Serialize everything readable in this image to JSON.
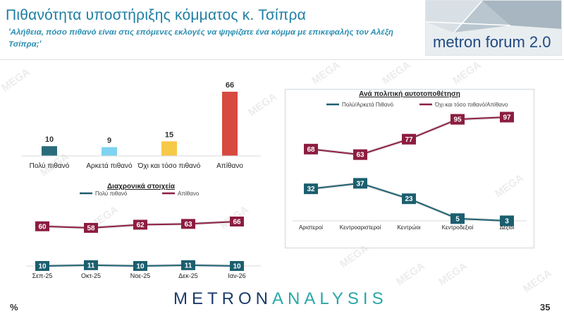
{
  "header": {
    "title": "Πιθανότητα υποστήριξης κόμματος κ. Τσίπρα",
    "subtitle": "'Αλήθεια, πόσο πιθανό είναι στις επόμενες εκλογές να ψηφίζατε ένα κόμμα με επικεφαλής τον Αλέξη Τσίπρα;'",
    "logo": "metron forum 2.0"
  },
  "watermark_text": "MEGA",
  "footer": {
    "percent_sign": "%",
    "page_number": "35",
    "brand_part1": "METRON",
    "brand_part2": "ANALYSIS"
  },
  "colors": {
    "teal": "#2a6b7c",
    "lightblue": "#7dd3f0",
    "yellow": "#f7c948",
    "red": "#d64a3f",
    "maroon": "#8c1d40",
    "dark_teal": "#1b5f6f"
  },
  "chart_data": [
    {
      "type": "bar",
      "categories": [
        "Πολύ πιθανό",
        "Αρκετά πιθανό",
        "Όχι και τόσο πιθανό",
        "Απίθανο"
      ],
      "values": [
        10,
        9,
        15,
        66
      ],
      "bar_colors": [
        "#2a6b7c",
        "#7dd3f0",
        "#f7c948",
        "#d64a3f"
      ],
      "ylim": [
        0,
        70
      ]
    },
    {
      "type": "line",
      "title": "Διαχρονικά στοιχεία",
      "categories": [
        "Σεπ-25",
        "Οκτ-25",
        "Νοε-25",
        "Δεκ-25",
        "Ιαν-26"
      ],
      "series": [
        {
          "name": "Πολύ πιθανό",
          "values": [
            10,
            11,
            10,
            11,
            10
          ],
          "color": "#1b5f6f"
        },
        {
          "name": "Απίθανο",
          "values": [
            60,
            58,
            62,
            63,
            66
          ],
          "color": "#8c1d40"
        }
      ],
      "legend": "top",
      "ylim": [
        0,
        75
      ]
    },
    {
      "type": "line",
      "title": "Ανά πολιτική αυτοτοποθέτηση",
      "categories": [
        "Αριστεροί",
        "Κεντροαριστεροί",
        "Κεντρώοι",
        "Κεντροδεξιοί",
        "Δεξιοί"
      ],
      "series": [
        {
          "name": "Πολύ/Αρκετά Πιθανό",
          "values": [
            32,
            37,
            23,
            5,
            3
          ],
          "color": "#1b5f6f"
        },
        {
          "name": "Όχι και τόσο πιθανό/Απίθανο",
          "values": [
            68,
            63,
            77,
            95,
            97
          ],
          "color": "#8c1d40"
        }
      ],
      "legend": "top",
      "ylim": [
        0,
        110
      ]
    }
  ]
}
